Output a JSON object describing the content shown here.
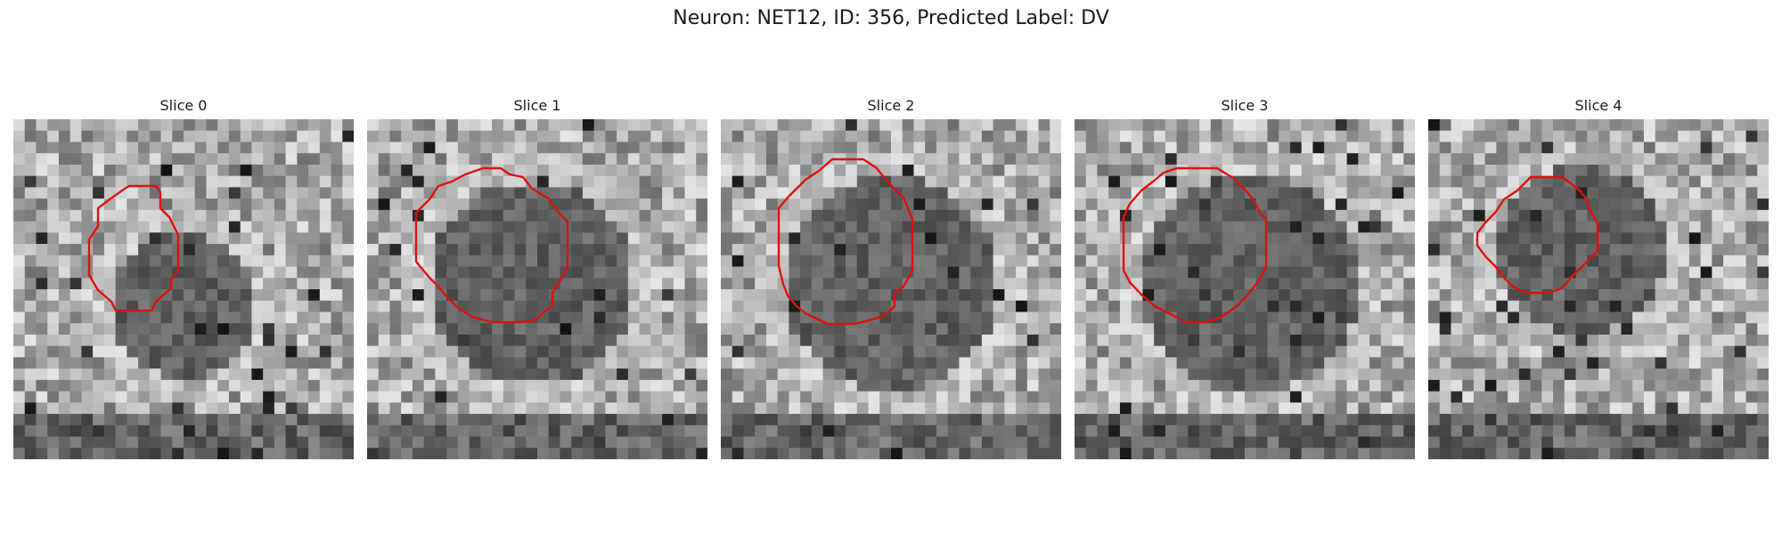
{
  "suptitle": "Neuron: NET12, ID: 356, Predicted Label: DV",
  "panels": [
    {
      "title": "Slice 0"
    },
    {
      "title": "Slice 1"
    },
    {
      "title": "Slice 2"
    },
    {
      "title": "Slice 3"
    },
    {
      "title": "Slice 4"
    }
  ],
  "contour_color": "#e01010",
  "colormap": "grayscale"
}
